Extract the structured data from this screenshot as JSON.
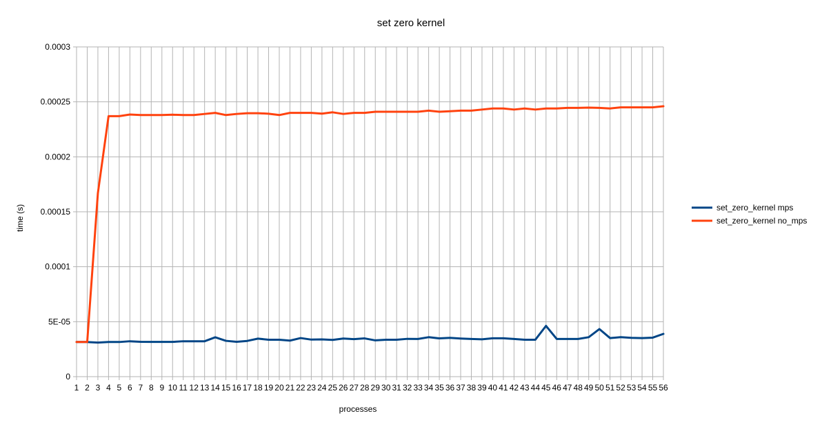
{
  "chart_data": {
    "type": "line",
    "title": "set zero kernel",
    "xlabel": "processes",
    "ylabel": "time (s)",
    "ylim": [
      0,
      0.0003
    ],
    "y_ticks": [
      "0",
      "5E-05",
      "0.0001",
      "0.00015",
      "0.0002",
      "0.00025",
      "0.0003"
    ],
    "grid": true,
    "legend_position": "right",
    "categories": [
      "1",
      "2",
      "3",
      "4",
      "5",
      "6",
      "7",
      "8",
      "9",
      "10",
      "11",
      "12",
      "13",
      "14",
      "15",
      "16",
      "17",
      "18",
      "19",
      "20",
      "21",
      "22",
      "23",
      "24",
      "25",
      "26",
      "27",
      "28",
      "29",
      "30",
      "31",
      "32",
      "33",
      "34",
      "35",
      "36",
      "37",
      "38",
      "39",
      "40",
      "41",
      "42",
      "43",
      "44",
      "45",
      "46",
      "47",
      "48",
      "49",
      "50",
      "51",
      "52",
      "53",
      "54",
      "55",
      "56"
    ],
    "series": [
      {
        "name": "set_zero_kernel mps",
        "color": "#004586",
        "values": [
          3.15e-05,
          3.15e-05,
          3.1e-05,
          3.15e-05,
          3.15e-05,
          3.22e-05,
          3.17e-05,
          3.16e-05,
          3.16e-05,
          3.16e-05,
          3.22e-05,
          3.22e-05,
          3.22e-05,
          3.58e-05,
          3.26e-05,
          3.17e-05,
          3.25e-05,
          3.46e-05,
          3.36e-05,
          3.36e-05,
          3.28e-05,
          3.51e-05,
          3.37e-05,
          3.39e-05,
          3.34e-05,
          3.47e-05,
          3.41e-05,
          3.48e-05,
          3.3e-05,
          3.36e-05,
          3.36e-05,
          3.44e-05,
          3.43e-05,
          3.59e-05,
          3.48e-05,
          3.53e-05,
          3.47e-05,
          3.43e-05,
          3.4e-05,
          3.49e-05,
          3.49e-05,
          3.43e-05,
          3.36e-05,
          3.36e-05,
          4.62e-05,
          3.43e-05,
          3.43e-05,
          3.43e-05,
          3.59e-05,
          4.33e-05,
          3.51e-05,
          3.59e-05,
          3.53e-05,
          3.51e-05,
          3.55e-05,
          3.89e-05
        ]
      },
      {
        "name": "set_zero_kernel no_mps",
        "color": "#ff420e",
        "values": [
          3.15e-05,
          3.15e-05,
          0.000167,
          0.000237,
          0.000237,
          0.0002385,
          0.000238,
          0.000238,
          0.000238,
          0.0002383,
          0.000238,
          0.000238,
          0.000239,
          0.00024,
          0.000238,
          0.000239,
          0.0002397,
          0.0002397,
          0.0002392,
          0.000238,
          0.00024,
          0.00024,
          0.00024,
          0.0002393,
          0.0002405,
          0.000239,
          0.00024,
          0.00024,
          0.000241,
          0.000241,
          0.000241,
          0.000241,
          0.000241,
          0.000242,
          0.000241,
          0.0002415,
          0.000242,
          0.000242,
          0.000243,
          0.000244,
          0.000244,
          0.000243,
          0.000244,
          0.000243,
          0.000244,
          0.000244,
          0.0002445,
          0.0002445,
          0.0002448,
          0.0002445,
          0.000244,
          0.000245,
          0.000245,
          0.000245,
          0.000245,
          0.000246
        ]
      }
    ]
  }
}
